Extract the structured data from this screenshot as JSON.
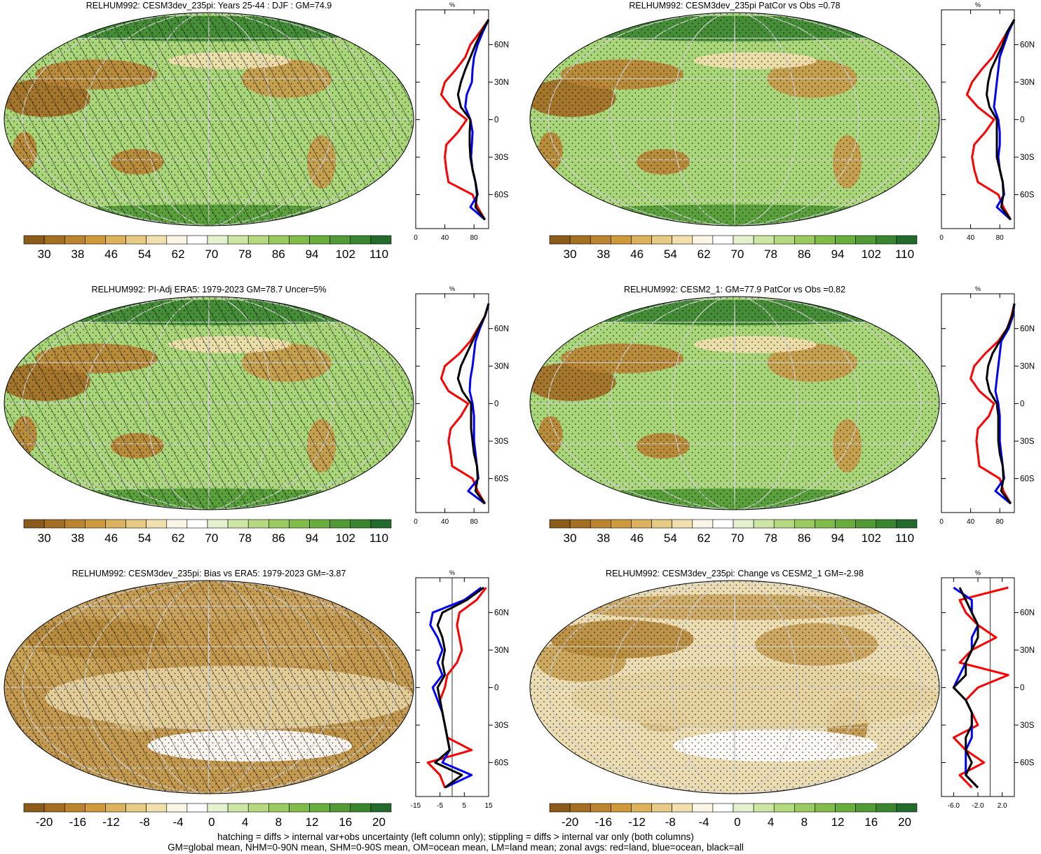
{
  "colors": {
    "brown": "#8c5a19",
    "green": "#236b2c",
    "land_line": "#ff0000",
    "ocean_line": "#0000ff",
    "all_line": "#000000",
    "missing": "#c8c8c8"
  },
  "panels": [
    {
      "title": "RELHUM992: CESM3dev_235pi: Years 25-44 : DJF : GM=74.9",
      "field": "mean",
      "hatch": true
    },
    {
      "title": "RELHUM992: CESM3dev_235pi PatCor vs Obs =0.78",
      "field": "mean",
      "hatch": false
    },
    {
      "title": "RELHUM992: PI-Adj ERA5: 1979-2023 GM=78.7 Uncer=5%",
      "field": "mean",
      "hatch": true
    },
    {
      "title": "RELHUM992: CESM2_1: GM=77.9 PatCor vs Obs =0.82",
      "field": "mean",
      "hatch": false
    },
    {
      "title": "RELHUM992: CESM3dev_235pi: Bias vs ERA5: 1979-2023 GM=-3.87",
      "field": "diff",
      "hatch": true
    },
    {
      "title": "RELHUM992: CESM3dev_235pi: Change vs CESM2_1 GM=-2.98",
      "field": "diff",
      "hatch": false
    }
  ],
  "colorbars": {
    "mean": {
      "labels": [
        "30",
        "38",
        "46",
        "54",
        "62",
        "70",
        "78",
        "86",
        "94",
        "102",
        "110"
      ]
    },
    "diff": {
      "labels": [
        "-20",
        "-16",
        "-12",
        "-8",
        "-4",
        "0",
        "4",
        "8",
        "12",
        "16",
        "20"
      ]
    }
  },
  "zonal": {
    "units": "%",
    "lat_labels": [
      "60N",
      "30N",
      "0",
      "30S",
      "60S"
    ],
    "mean_xticks": [
      "0",
      "40",
      "80"
    ],
    "diff_xticks_left": [
      "-15",
      "-5",
      "5",
      "15"
    ],
    "diff_xticks_right": [
      "-6.0",
      "-2.0",
      "2.0"
    ]
  },
  "footer": {
    "line1": "hatching = diffs > internal var+obs uncertainty (left column only); stippling = diffs > internal var only (both columns)",
    "line2": "GM=global mean, NHM=0-90N mean, SHM=0-90S mean, OM=ocean mean, LM=land mean; zonal avgs: red=land, blue=ocean, black=all"
  },
  "chart_data": [
    {
      "type": "heatmap",
      "title": "RELHUM992: CESM3dev_235pi: Years 25-44 : DJF : GM=74.9",
      "colorbar": {
        "min": 26,
        "max": 114,
        "labels": [
          30,
          38,
          46,
          54,
          62,
          70,
          78,
          86,
          94,
          102,
          110
        ]
      },
      "zonal": {
        "xlim": [
          0,
          100
        ],
        "lat": [
          80,
          70,
          60,
          50,
          40,
          30,
          20,
          10,
          0,
          -10,
          -20,
          -30,
          -40,
          -50,
          -60,
          -70,
          -80
        ],
        "land": [
          100,
          88,
          75,
          68,
          55,
          40,
          35,
          48,
          70,
          58,
          42,
          40,
          42,
          45,
          78,
          85,
          95
        ],
        "ocean": [
          100,
          92,
          85,
          80,
          78,
          77,
          70,
          68,
          75,
          78,
          77,
          76,
          78,
          82,
          85,
          75,
          95
        ],
        "all": [
          100,
          90,
          82,
          75,
          68,
          62,
          58,
          62,
          75,
          74,
          74,
          75,
          78,
          82,
          84,
          82,
          95
        ]
      }
    },
    {
      "type": "heatmap",
      "title": "RELHUM992: CESM3dev_235pi PatCor vs Obs =0.78",
      "colorbar": {
        "min": 26,
        "max": 114,
        "labels": [
          30,
          38,
          46,
          54,
          62,
          70,
          78,
          86,
          94,
          102,
          110
        ]
      },
      "zonal": {
        "xlim": [
          0,
          100
        ],
        "lat": [
          80,
          70,
          60,
          50,
          40,
          30,
          20,
          10,
          0,
          -10,
          -20,
          -30,
          -40,
          -50,
          -60,
          -70,
          -80
        ],
        "land": [
          100,
          90,
          80,
          70,
          55,
          42,
          35,
          50,
          72,
          60,
          45,
          42,
          45,
          50,
          78,
          85,
          95
        ],
        "ocean": [
          100,
          92,
          86,
          80,
          78,
          76,
          74,
          72,
          78,
          80,
          80,
          78,
          80,
          84,
          86,
          76,
          95
        ],
        "all": [
          100,
          90,
          84,
          76,
          68,
          64,
          62,
          66,
          76,
          76,
          76,
          76,
          80,
          84,
          85,
          82,
          95
        ]
      }
    },
    {
      "type": "heatmap",
      "title": "RELHUM992: PI-Adj ERA5: 1979-2023 GM=78.7 Uncer=5%",
      "colorbar": {
        "min": 26,
        "max": 114,
        "labels": [
          30,
          38,
          46,
          54,
          62,
          70,
          78,
          86,
          94,
          102,
          110
        ]
      },
      "zonal": {
        "xlim": [
          0,
          100
        ],
        "lat": [
          80,
          70,
          60,
          50,
          40,
          30,
          20,
          10,
          0,
          -10,
          -20,
          -30,
          -40,
          -50,
          -60,
          -70,
          -80
        ],
        "land": [
          100,
          95,
          85,
          75,
          60,
          40,
          35,
          45,
          72,
          62,
          48,
          45,
          48,
          50,
          78,
          85,
          95
        ],
        "ocean": [
          100,
          95,
          88,
          82,
          80,
          78,
          75,
          74,
          78,
          80,
          80,
          80,
          82,
          84,
          86,
          72,
          95
        ],
        "all": [
          100,
          95,
          86,
          78,
          70,
          62,
          58,
          64,
          76,
          76,
          76,
          78,
          80,
          84,
          85,
          82,
          95
        ]
      }
    },
    {
      "type": "heatmap",
      "title": "RELHUM992: CESM2_1: GM=77.9 PatCor vs Obs =0.82",
      "colorbar": {
        "min": 26,
        "max": 114,
        "labels": [
          30,
          38,
          46,
          54,
          62,
          70,
          78,
          86,
          94,
          102,
          110
        ]
      },
      "zonal": {
        "xlim": [
          0,
          100
        ],
        "lat": [
          80,
          70,
          60,
          50,
          40,
          30,
          20,
          10,
          0,
          -10,
          -20,
          -30,
          -40,
          -50,
          -60,
          -70,
          -80
        ],
        "land": [
          100,
          96,
          90,
          78,
          60,
          45,
          40,
          52,
          72,
          65,
          50,
          48,
          50,
          52,
          80,
          85,
          95
        ],
        "ocean": [
          100,
          98,
          92,
          82,
          80,
          78,
          76,
          74,
          78,
          80,
          80,
          80,
          82,
          84,
          86,
          74,
          95
        ],
        "all": [
          100,
          97,
          90,
          80,
          70,
          64,
          62,
          66,
          76,
          78,
          78,
          78,
          80,
          84,
          85,
          82,
          95
        ]
      }
    },
    {
      "type": "heatmap",
      "title": "RELHUM992: CESM3dev_235pi: Bias vs ERA5: 1979-2023 GM=-3.87",
      "colorbar": {
        "min": -22,
        "max": 22,
        "labels": [
          -20,
          -16,
          -12,
          -8,
          -4,
          0,
          4,
          8,
          12,
          16,
          20
        ]
      },
      "zonal": {
        "xlim": [
          -15,
          15
        ],
        "lat": [
          80,
          70,
          60,
          50,
          40,
          30,
          20,
          10,
          0,
          -10,
          -20,
          -30,
          -40,
          -50,
          -60,
          -70,
          -80
        ],
        "land": [
          14,
          10,
          3,
          2,
          3,
          4,
          2,
          -2,
          -3,
          -5,
          -4,
          -3,
          -2,
          8,
          -10,
          -5,
          -3
        ],
        "ocean": [
          12,
          5,
          -8,
          -9,
          -6,
          -4,
          -6,
          -4,
          -8,
          -6,
          -4,
          -3,
          -2,
          -1,
          -4,
          8,
          -3
        ],
        "all": [
          13,
          6,
          -4,
          -6,
          -4,
          -3,
          -4,
          -3,
          -6,
          -5,
          -4,
          -3,
          -2,
          -1,
          -7,
          4,
          -3
        ]
      }
    },
    {
      "type": "heatmap",
      "title": "RELHUM992: CESM3dev_235pi: Change vs CESM2_1 GM=-2.98",
      "colorbar": {
        "min": -22,
        "max": 22,
        "labels": [
          -20,
          -16,
          -12,
          -8,
          -4,
          0,
          4,
          8,
          12,
          16,
          20
        ]
      },
      "zonal": {
        "xlim": [
          -8,
          4
        ],
        "lat": [
          80,
          70,
          60,
          50,
          40,
          30,
          20,
          10,
          0,
          -10,
          -20,
          -30,
          -40,
          -50,
          -60,
          -70,
          -80
        ],
        "land": [
          3,
          -5,
          -4,
          -2,
          1,
          -3,
          -5,
          3,
          -2,
          -4,
          -3,
          -2,
          -6,
          -4,
          -1,
          -5,
          -3
        ],
        "ocean": [
          -6,
          -3,
          -3,
          -2,
          -3,
          -3,
          -4,
          -5,
          -6,
          -4,
          -3,
          -3,
          -3,
          -4,
          -4,
          -4,
          -2
        ],
        "all": [
          -5,
          -4,
          -3,
          -2,
          -2,
          -3,
          -4,
          -4,
          -6,
          -4,
          -3,
          -3,
          -4,
          -4,
          -3,
          -4,
          -2
        ]
      }
    }
  ]
}
